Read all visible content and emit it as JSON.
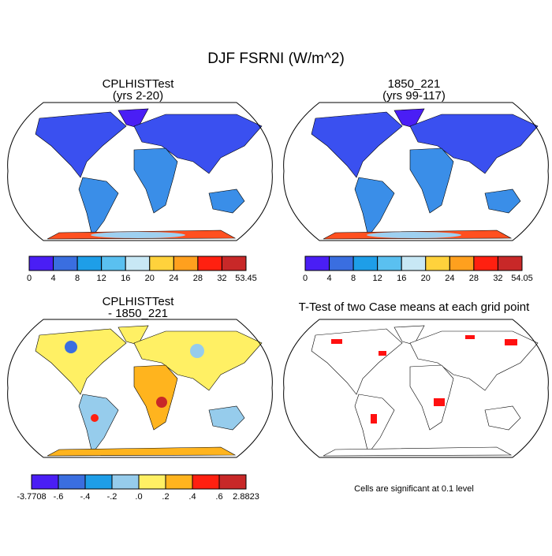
{
  "title": "DJF FSRNI (W/m^2)",
  "panels": [
    {
      "title": "CPLHISTTest",
      "subtitle": "(yrs 2-20)"
    },
    {
      "title": "1850_221",
      "subtitle": "(yrs 99-117)"
    },
    {
      "title": "CPLHISTTest",
      "subtitle": "- 1850_221"
    },
    {
      "title": "T-Test of two Case means at each grid point"
    }
  ],
  "colorbars": [
    {
      "labels": [
        "0",
        "4",
        "8",
        "12",
        "16",
        "20",
        "24",
        "28",
        "32",
        "53.45"
      ],
      "colors": [
        "#4a1ef5",
        "#3a6ee0",
        "#1e9ee8",
        "#5ac0f0",
        "#c8e8f5",
        "#ffd23c",
        "#ffa01e",
        "#ff2010",
        "#c82828"
      ]
    },
    {
      "labels": [
        "0",
        "4",
        "8",
        "12",
        "16",
        "20",
        "24",
        "28",
        "32",
        "54.05"
      ],
      "colors": [
        "#4a1ef5",
        "#3a6ee0",
        "#1e9ee8",
        "#5ac0f0",
        "#c8e8f5",
        "#ffd23c",
        "#ffa01e",
        "#ff2010",
        "#c82828"
      ]
    },
    {
      "labels": [
        "-3.7708",
        "-.6",
        "-.4",
        "-.2",
        ".0",
        ".2",
        ".4",
        ".6",
        "2.8823"
      ],
      "colors": [
        "#4a1ef5",
        "#3a6ee0",
        "#1e9ee8",
        "#96ccec",
        "#fff064",
        "#ffb41e",
        "#ff2010",
        "#c82828"
      ]
    }
  ],
  "note": "Cells are significant at 0.1 level"
}
